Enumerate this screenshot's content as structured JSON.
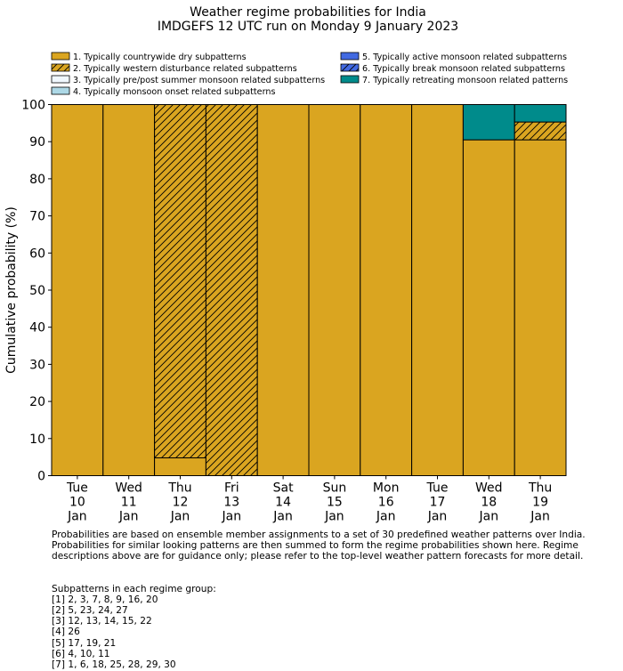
{
  "chart_data": {
    "type": "bar",
    "stacked": true,
    "title": "Weather regime probabilities for India",
    "subtitle": "IMDGEFS 12 UTC run on Monday 9 January 2023",
    "ylabel": "Cumulative probability (%)",
    "xlabel": "",
    "ylim": [
      0,
      100
    ],
    "yticks": [
      0,
      10,
      20,
      30,
      40,
      50,
      60,
      70,
      80,
      90,
      100
    ],
    "grid": false,
    "legend_position": "top",
    "categories": [
      [
        "Tue",
        "10",
        "Jan"
      ],
      [
        "Wed",
        "11",
        "Jan"
      ],
      [
        "Thu",
        "12",
        "Jan"
      ],
      [
        "Fri",
        "13",
        "Jan"
      ],
      [
        "Sat",
        "14",
        "Jan"
      ],
      [
        "Sun",
        "15",
        "Jan"
      ],
      [
        "Mon",
        "16",
        "Jan"
      ],
      [
        "Tue",
        "17",
        "Jan"
      ],
      [
        "Wed",
        "18",
        "Jan"
      ],
      [
        "Thu",
        "19",
        "Jan"
      ]
    ],
    "series": [
      {
        "name": "1. Typically countrywide dry subpatterns",
        "color": "#DAA520",
        "hatch": false,
        "values": [
          100,
          100,
          4.8,
          0,
          100,
          100,
          100,
          100,
          90.5,
          90.5
        ]
      },
      {
        "name": "2. Typically western disturbance related subpatterns",
        "color": "#DAA520",
        "hatch": true,
        "values": [
          0,
          0,
          95.2,
          100,
          0,
          0,
          0,
          0,
          0,
          4.8
        ]
      },
      {
        "name": "3. Typically pre/post summer monsoon related subpatterns",
        "color": "#F0F8FF",
        "hatch": false,
        "values": [
          0,
          0,
          0,
          0,
          0,
          0,
          0,
          0,
          0,
          0
        ]
      },
      {
        "name": "4. Typically monsoon onset related subpatterns",
        "color": "#ADD8E6",
        "hatch": false,
        "values": [
          0,
          0,
          0,
          0,
          0,
          0,
          0,
          0,
          0,
          0
        ]
      },
      {
        "name": "5. Typically active monsoon related subpatterns",
        "color": "#4169E1",
        "hatch": false,
        "values": [
          0,
          0,
          0,
          0,
          0,
          0,
          0,
          0,
          0,
          0
        ]
      },
      {
        "name": "6. Typically break monsoon related subpatterns",
        "color": "#4169E1",
        "hatch": true,
        "values": [
          0,
          0,
          0,
          0,
          0,
          0,
          0,
          0,
          0,
          0
        ]
      },
      {
        "name": "7. Typically retreating monsoon related patterns",
        "color": "#008B8B",
        "hatch": false,
        "values": [
          0,
          0,
          0,
          0,
          0,
          0,
          0,
          0,
          9.5,
          4.7
        ]
      }
    ]
  },
  "notes": {
    "description_lines": [
      "Probabilities are based on ensemble member assignments to a set of 30 predefined weather patterns over India.",
      "Probabilities for similar looking patterns are then summed to form the regime probabilities shown here. Regime",
      "descriptions above are for guidance only; please refer to the top-level weather pattern forecasts for more detail."
    ],
    "subpatterns_heading": "Subpatterns in each regime group:",
    "subpattern_lines": [
      "[1] 2, 3, 7, 8, 9, 16, 20",
      "[2] 5, 23, 24, 27",
      "[3] 12, 13, 14, 15, 22",
      "[4] 26",
      "[5] 17, 19, 21",
      "[6] 4, 10, 11",
      "[7] 1, 6, 18, 25, 28, 29, 30"
    ]
  }
}
